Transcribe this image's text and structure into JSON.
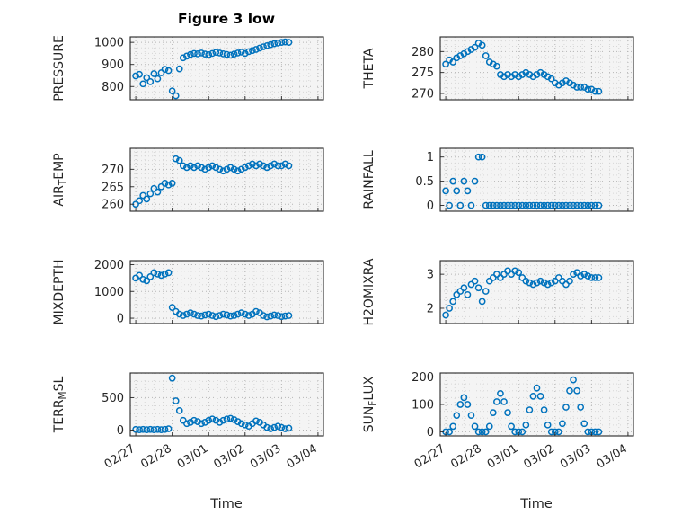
{
  "figure": {
    "title": "Figure 3 low",
    "xlabel": "Time"
  },
  "colors": {
    "marker": "#0072BD",
    "plot_bg": "#f4f4f4",
    "grid_major": "#b5b5b5",
    "grid_minor": "#d6d6d6",
    "axis": "#262626",
    "text": "#262626"
  },
  "chart_data": {
    "type": "scatter",
    "layout": "4x2-panel-grid",
    "marker": "open-circle",
    "grid": "dotted major+minor, box on",
    "xlabel": "Time",
    "xlim": [
      -0.15,
      5.15
    ],
    "x_ticks": {
      "positions": [
        0,
        1,
        2,
        3,
        4,
        5
      ],
      "labels": [
        "02/27",
        "02/28",
        "03/01",
        "03/02",
        "03/03",
        "03/04"
      ]
    },
    "x_unit": "days since 02/27",
    "x": [
      0,
      0.1,
      0.2,
      0.3,
      0.4,
      0.5,
      0.6,
      0.7,
      0.8,
      0.9,
      1,
      1.1,
      1.2,
      1.3,
      1.4,
      1.5,
      1.6,
      1.7,
      1.8,
      1.9,
      2,
      2.1,
      2.2,
      2.3,
      2.4,
      2.5,
      2.6,
      2.7,
      2.8,
      2.9,
      3,
      3.1,
      3.2,
      3.3,
      3.4,
      3.5,
      3.6,
      3.7,
      3.8,
      3.9,
      4,
      4.1,
      4.2
    ],
    "panels": [
      {
        "id": "pressure",
        "label": "PRESSURE",
        "ylabel_segments": [
          [
            "PRESSURE",
            false
          ]
        ],
        "ylim": [
          740,
          1025
        ],
        "yticks": [
          800,
          900,
          1000
        ],
        "ytick_labels": [
          "800",
          "900",
          "1000"
        ],
        "y_minor_step": 25,
        "values": [
          848,
          855,
          812,
          840,
          822,
          858,
          835,
          862,
          878,
          872,
          780,
          758,
          880,
          930,
          938,
          945,
          950,
          948,
          952,
          947,
          944,
          950,
          955,
          952,
          948,
          945,
          942,
          947,
          952,
          956,
          950,
          958,
          963,
          968,
          974,
          980,
          985,
          990,
          994,
          997,
          1000,
          1002,
          1000
        ]
      },
      {
        "id": "theta",
        "label": "THETA",
        "ylabel_segments": [
          [
            "THETA",
            false
          ]
        ],
        "ylim": [
          268.5,
          283.5
        ],
        "yticks": [
          270,
          275,
          280
        ],
        "ytick_labels": [
          "270",
          "275",
          "280"
        ],
        "y_minor_step": 1.25,
        "values": [
          277,
          278,
          277.5,
          278.5,
          279,
          279.5,
          280,
          280.5,
          281,
          282,
          281.5,
          279,
          277.5,
          277,
          276.5,
          274.5,
          274,
          274.5,
          274,
          274.5,
          274,
          274.5,
          275,
          274.5,
          274,
          274.5,
          275,
          274.5,
          274,
          273.5,
          272.5,
          272,
          272.5,
          273,
          272.5,
          272,
          271.5,
          271.5,
          271.5,
          271,
          271,
          270.5,
          270.5
        ]
      },
      {
        "id": "air-temp",
        "label": "AIR_TEMP",
        "ylabel_segments": [
          [
            "AIR",
            false
          ],
          [
            "T",
            true
          ],
          [
            "EMP",
            false
          ]
        ],
        "ylim": [
          258,
          276
        ],
        "yticks": [
          260,
          265,
          270
        ],
        "ytick_labels": [
          "260",
          "265",
          "270"
        ],
        "y_minor_step": 1.25,
        "values": [
          260,
          261,
          262.5,
          261.5,
          263,
          264.5,
          263.5,
          265,
          266,
          265.5,
          266,
          273,
          272.5,
          271,
          270.5,
          271,
          270.5,
          271,
          270.5,
          270,
          270.5,
          271,
          270.5,
          270,
          269.5,
          270,
          270.5,
          270,
          269.5,
          270,
          270.5,
          271,
          271.5,
          271,
          271.5,
          271,
          270.5,
          271,
          271.5,
          271,
          271,
          271.5,
          271
        ]
      },
      {
        "id": "rainfall",
        "label": "RAINFALL",
        "ylabel_segments": [
          [
            "RAINFALL",
            false
          ]
        ],
        "ylim": [
          -0.12,
          1.18
        ],
        "yticks": [
          0,
          0.5,
          1
        ],
        "ytick_labels": [
          "0",
          "0.5",
          "1"
        ],
        "y_minor_step": 0.125,
        "values": [
          0.3,
          0,
          0.5,
          0.3,
          0,
          0.5,
          0.3,
          0,
          0.5,
          1,
          1,
          0,
          0,
          0,
          0,
          0,
          0,
          0,
          0,
          0,
          0,
          0,
          0,
          0,
          0,
          0,
          0,
          0,
          0,
          0,
          0,
          0,
          0,
          0,
          0,
          0,
          0,
          0,
          0,
          0,
          0,
          0,
          0
        ]
      },
      {
        "id": "mixdepth",
        "label": "MIXDEPTH",
        "ylabel_segments": [
          [
            "MIXDEPTH",
            false
          ]
        ],
        "ylim": [
          -200,
          2150
        ],
        "yticks": [
          0,
          1000,
          2000
        ],
        "ytick_labels": [
          "0",
          "1000",
          "2000"
        ],
        "y_minor_step": 250,
        "values": [
          1500,
          1600,
          1450,
          1400,
          1550,
          1700,
          1650,
          1600,
          1650,
          1700,
          400,
          250,
          150,
          100,
          150,
          200,
          150,
          100,
          80,
          120,
          150,
          100,
          60,
          100,
          150,
          120,
          80,
          100,
          150,
          200,
          150,
          100,
          150,
          250,
          200,
          100,
          50,
          80,
          120,
          100,
          60,
          80,
          100
        ]
      },
      {
        "id": "h2omixra",
        "label": "H2OMIXRA",
        "ylabel_segments": [
          [
            "H2OMIXRA",
            false
          ]
        ],
        "ylim": [
          1.55,
          3.4
        ],
        "yticks": [
          2,
          3
        ],
        "ytick_labels": [
          "2",
          "3"
        ],
        "y_minor_step": 0.25,
        "values": [
          1.8,
          2,
          2.2,
          2.4,
          2.5,
          2.6,
          2.4,
          2.7,
          2.8,
          2.6,
          2.2,
          2.5,
          2.8,
          2.9,
          3,
          2.9,
          3,
          3.1,
          3,
          3.1,
          3.05,
          2.9,
          2.8,
          2.75,
          2.7,
          2.75,
          2.8,
          2.75,
          2.7,
          2.75,
          2.8,
          2.9,
          2.8,
          2.7,
          2.8,
          3,
          3.05,
          2.95,
          3,
          2.95,
          2.9,
          2.9,
          2.9
        ]
      },
      {
        "id": "terr-msl",
        "label": "TERR_MSL",
        "ylabel_segments": [
          [
            "TERR",
            false
          ],
          [
            "M",
            true
          ],
          [
            "SL",
            false
          ]
        ],
        "ylim": [
          -90,
          880
        ],
        "yticks": [
          0,
          500
        ],
        "ytick_labels": [
          "0",
          "500"
        ],
        "y_minor_step": 125,
        "values": [
          10,
          5,
          10,
          5,
          10,
          5,
          10,
          5,
          10,
          20,
          800,
          450,
          300,
          150,
          100,
          120,
          150,
          130,
          100,
          120,
          150,
          170,
          150,
          120,
          150,
          170,
          180,
          160,
          130,
          100,
          80,
          60,
          100,
          140,
          120,
          80,
          40,
          20,
          40,
          60,
          40,
          20,
          30
        ]
      },
      {
        "id": "sun-flux",
        "label": "SUN_FLUX",
        "ylabel_segments": [
          [
            "SUN",
            false
          ],
          [
            "F",
            true
          ],
          [
            "LUX",
            false
          ]
        ],
        "ylim": [
          -15,
          215
        ],
        "yticks": [
          0,
          100,
          200
        ],
        "ytick_labels": [
          "0",
          "100",
          "200"
        ],
        "y_minor_step": 25,
        "values": [
          0,
          0,
          20,
          60,
          100,
          125,
          100,
          60,
          20,
          0,
          0,
          0,
          20,
          70,
          110,
          140,
          110,
          70,
          20,
          0,
          0,
          0,
          25,
          80,
          130,
          160,
          130,
          80,
          25,
          0,
          0,
          0,
          30,
          90,
          150,
          190,
          150,
          90,
          30,
          0,
          0,
          0,
          0
        ]
      }
    ]
  }
}
